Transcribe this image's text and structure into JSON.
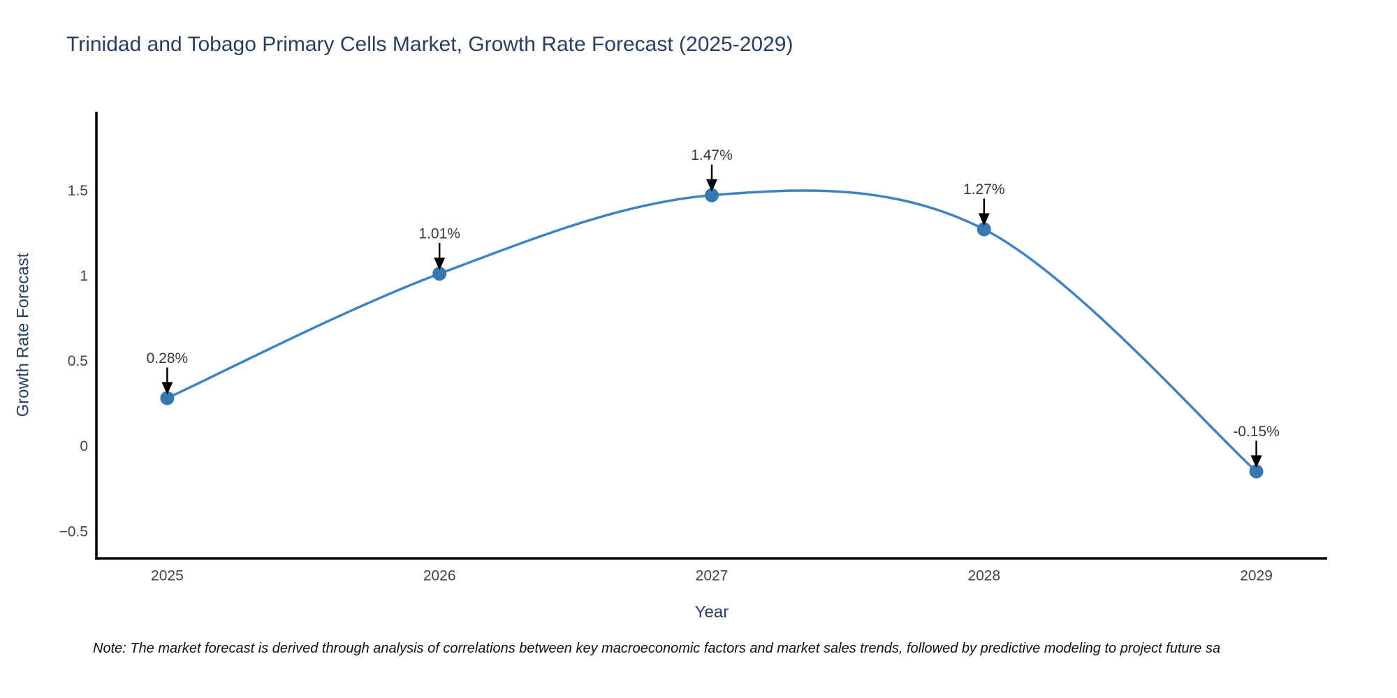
{
  "chart_data": {
    "type": "line",
    "title": "Trinidad and Tobago Primary Cells Market, Growth Rate Forecast (2025-2029)",
    "xlabel": "Year",
    "ylabel": "Growth Rate Forecast",
    "x": [
      2025,
      2026,
      2027,
      2028,
      2029
    ],
    "x_tick_labels": [
      "2025",
      "2026",
      "2027",
      "2028",
      "2029"
    ],
    "values": [
      0.28,
      1.01,
      1.47,
      1.27,
      -0.15
    ],
    "point_labels": [
      "0.28%",
      "1.01%",
      "1.47%",
      "1.27%",
      "-0.15%"
    ],
    "y_ticks": [
      {
        "value": 1.5,
        "label": "1.5"
      },
      {
        "value": 1,
        "label": "1"
      },
      {
        "value": 0.5,
        "label": "0.5"
      },
      {
        "value": 0,
        "label": "0"
      },
      {
        "value": -0.5,
        "label": "−0.5"
      }
    ],
    "xlim": [
      2024.74,
      2029.26
    ],
    "ylim": [
      -0.66,
      1.96
    ],
    "line_shape": "spline",
    "grid": false,
    "legend": "none",
    "note": "Note: The market forecast is derived through analysis of correlations between key macroeconomic factors and market sales trends, followed by predictive modeling to project future sa",
    "colors": {
      "line": "#4083c0",
      "marker": "#3878b0",
      "arrow": "#000000",
      "axis_line": "#000000",
      "title_text": "#2a3f5f",
      "tick_text": "#3b4754",
      "annotation_text": "#333a45"
    }
  }
}
